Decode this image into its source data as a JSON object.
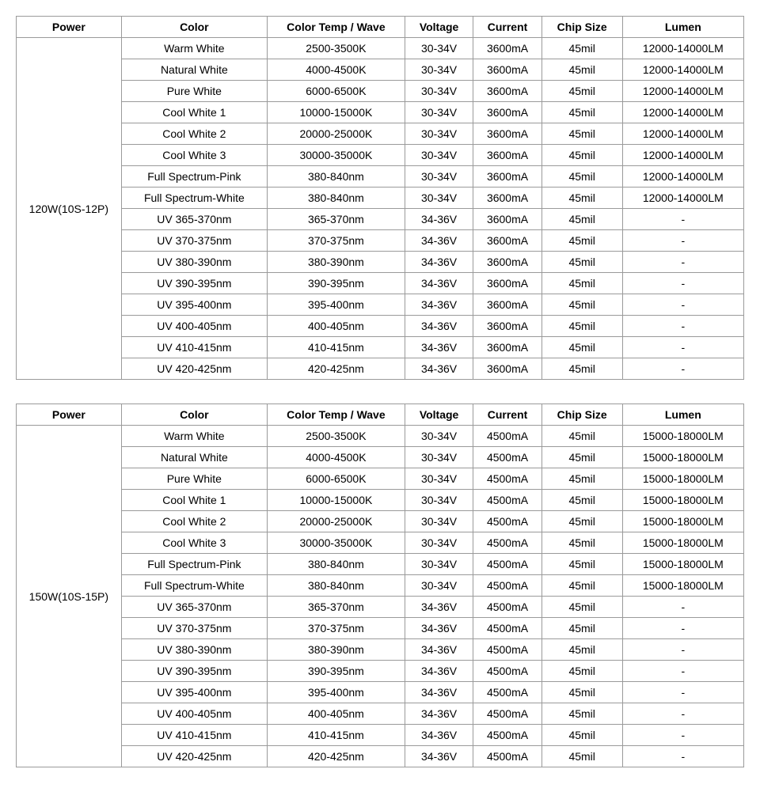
{
  "headers": {
    "power": "Power",
    "color": "Color",
    "temp": "Color Temp / Wave",
    "voltage": "Voltage",
    "current": "Current",
    "chip": "Chip Size",
    "lumen": "Lumen"
  },
  "tables": [
    {
      "power": "120W(10S-12P)",
      "rows": [
        {
          "color": "Warm White",
          "temp": "2500-3500K",
          "voltage": "30-34V",
          "current": "3600mA",
          "chip": "45mil",
          "lumen": "12000-14000LM"
        },
        {
          "color": "Natural White",
          "temp": "4000-4500K",
          "voltage": "30-34V",
          "current": "3600mA",
          "chip": "45mil",
          "lumen": "12000-14000LM"
        },
        {
          "color": "Pure White",
          "temp": "6000-6500K",
          "voltage": "30-34V",
          "current": "3600mA",
          "chip": "45mil",
          "lumen": "12000-14000LM"
        },
        {
          "color": "Cool White 1",
          "temp": "10000-15000K",
          "voltage": "30-34V",
          "current": "3600mA",
          "chip": "45mil",
          "lumen": "12000-14000LM"
        },
        {
          "color": "Cool White 2",
          "temp": "20000-25000K",
          "voltage": "30-34V",
          "current": "3600mA",
          "chip": "45mil",
          "lumen": "12000-14000LM"
        },
        {
          "color": "Cool White 3",
          "temp": "30000-35000K",
          "voltage": "30-34V",
          "current": "3600mA",
          "chip": "45mil",
          "lumen": "12000-14000LM"
        },
        {
          "color": "Full Spectrum-Pink",
          "temp": "380-840nm",
          "voltage": "30-34V",
          "current": "3600mA",
          "chip": "45mil",
          "lumen": "12000-14000LM"
        },
        {
          "color": "Full Spectrum-White",
          "temp": "380-840nm",
          "voltage": "30-34V",
          "current": "3600mA",
          "chip": "45mil",
          "lumen": "12000-14000LM"
        },
        {
          "color": "UV 365-370nm",
          "temp": "365-370nm",
          "voltage": "34-36V",
          "current": "3600mA",
          "chip": "45mil",
          "lumen": "-"
        },
        {
          "color": "UV 370-375nm",
          "temp": "370-375nm",
          "voltage": "34-36V",
          "current": "3600mA",
          "chip": "45mil",
          "lumen": "-"
        },
        {
          "color": "UV 380-390nm",
          "temp": "380-390nm",
          "voltage": "34-36V",
          "current": "3600mA",
          "chip": "45mil",
          "lumen": "-"
        },
        {
          "color": "UV 390-395nm",
          "temp": "390-395nm",
          "voltage": "34-36V",
          "current": "3600mA",
          "chip": "45mil",
          "lumen": "-"
        },
        {
          "color": "UV 395-400nm",
          "temp": "395-400nm",
          "voltage": "34-36V",
          "current": "3600mA",
          "chip": "45mil",
          "lumen": "-"
        },
        {
          "color": "UV 400-405nm",
          "temp": "400-405nm",
          "voltage": "34-36V",
          "current": "3600mA",
          "chip": "45mil",
          "lumen": "-"
        },
        {
          "color": "UV 410-415nm",
          "temp": "410-415nm",
          "voltage": "34-36V",
          "current": "3600mA",
          "chip": "45mil",
          "lumen": "-"
        },
        {
          "color": "UV 420-425nm",
          "temp": "420-425nm",
          "voltage": "34-36V",
          "current": "3600mA",
          "chip": "45mil",
          "lumen": "-"
        }
      ]
    },
    {
      "power": "150W(10S-15P)",
      "rows": [
        {
          "color": "Warm White",
          "temp": "2500-3500K",
          "voltage": "30-34V",
          "current": "4500mA",
          "chip": "45mil",
          "lumen": "15000-18000LM"
        },
        {
          "color": "Natural White",
          "temp": "4000-4500K",
          "voltage": "30-34V",
          "current": "4500mA",
          "chip": "45mil",
          "lumen": "15000-18000LM"
        },
        {
          "color": "Pure White",
          "temp": "6000-6500K",
          "voltage": "30-34V",
          "current": "4500mA",
          "chip": "45mil",
          "lumen": "15000-18000LM"
        },
        {
          "color": "Cool White 1",
          "temp": "10000-15000K",
          "voltage": "30-34V",
          "current": "4500mA",
          "chip": "45mil",
          "lumen": "15000-18000LM"
        },
        {
          "color": "Cool White 2",
          "temp": "20000-25000K",
          "voltage": "30-34V",
          "current": "4500mA",
          "chip": "45mil",
          "lumen": "15000-18000LM"
        },
        {
          "color": "Cool White 3",
          "temp": "30000-35000K",
          "voltage": "30-34V",
          "current": "4500mA",
          "chip": "45mil",
          "lumen": "15000-18000LM"
        },
        {
          "color": "Full Spectrum-Pink",
          "temp": "380-840nm",
          "voltage": "30-34V",
          "current": "4500mA",
          "chip": "45mil",
          "lumen": "15000-18000LM"
        },
        {
          "color": "Full Spectrum-White",
          "temp": "380-840nm",
          "voltage": "30-34V",
          "current": "4500mA",
          "chip": "45mil",
          "lumen": "15000-18000LM"
        },
        {
          "color": "UV 365-370nm",
          "temp": "365-370nm",
          "voltage": "34-36V",
          "current": "4500mA",
          "chip": "45mil",
          "lumen": "-"
        },
        {
          "color": "UV 370-375nm",
          "temp": "370-375nm",
          "voltage": "34-36V",
          "current": "4500mA",
          "chip": "45mil",
          "lumen": "-"
        },
        {
          "color": "UV 380-390nm",
          "temp": "380-390nm",
          "voltage": "34-36V",
          "current": "4500mA",
          "chip": "45mil",
          "lumen": "-"
        },
        {
          "color": "UV 390-395nm",
          "temp": "390-395nm",
          "voltage": "34-36V",
          "current": "4500mA",
          "chip": "45mil",
          "lumen": "-"
        },
        {
          "color": "UV 395-400nm",
          "temp": "395-400nm",
          "voltage": "34-36V",
          "current": "4500mA",
          "chip": "45mil",
          "lumen": "-"
        },
        {
          "color": "UV 400-405nm",
          "temp": "400-405nm",
          "voltage": "34-36V",
          "current": "4500mA",
          "chip": "45mil",
          "lumen": "-"
        },
        {
          "color": "UV 410-415nm",
          "temp": "410-415nm",
          "voltage": "34-36V",
          "current": "4500mA",
          "chip": "45mil",
          "lumen": "-"
        },
        {
          "color": "UV 420-425nm",
          "temp": "420-425nm",
          "voltage": "34-36V",
          "current": "4500mA",
          "chip": "45mil",
          "lumen": "-"
        }
      ]
    }
  ]
}
